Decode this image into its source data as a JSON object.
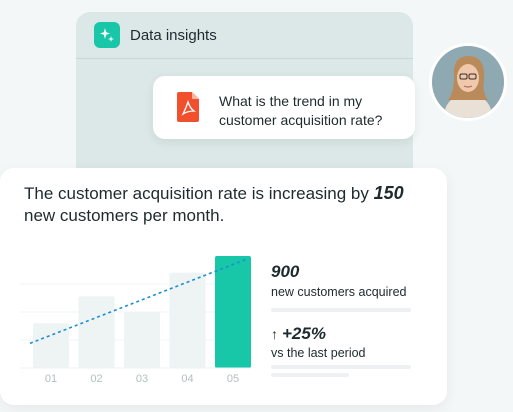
{
  "app": {
    "title": "Data insights"
  },
  "chat": {
    "question": "What is the trend in my customer acquisition rate?"
  },
  "insight": {
    "headline_prefix": "The customer acquisition rate is increasing by",
    "headline_value": "150",
    "headline_suffix": "new customers per month."
  },
  "stats": {
    "primary_value": "900",
    "primary_label": "new customers acquired",
    "trend_arrow": "↑",
    "secondary_value": "+25%",
    "secondary_label": "vs the last period"
  },
  "colors": {
    "accent": "#17c7a8",
    "bar_muted": "#eef3f3",
    "trend_line": "#1c8fd1",
    "pdf_red": "#f1502f"
  },
  "chart_data": {
    "type": "bar",
    "categories": [
      "01",
      "02",
      "03",
      "04",
      "05"
    ],
    "values": [
      0.4,
      0.64,
      0.5,
      0.85,
      1.0
    ],
    "highlight_index": 4,
    "trend_line": {
      "start": 0.22,
      "end": 0.97
    },
    "ylim": [
      0,
      1
    ]
  }
}
